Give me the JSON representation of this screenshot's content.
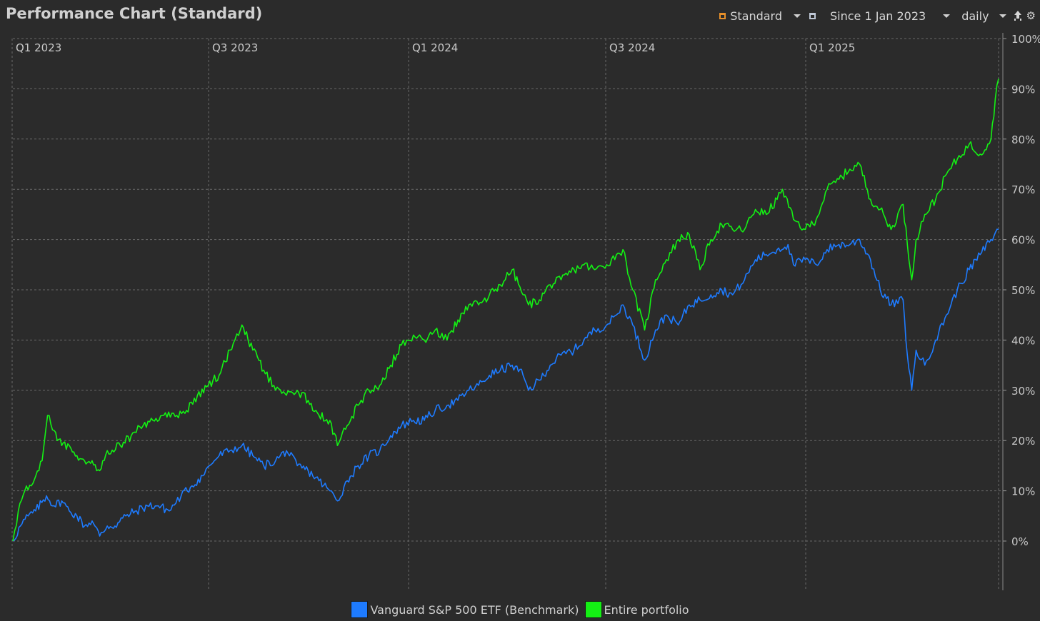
{
  "window": {
    "title": "Performance Chart (Standard)"
  },
  "toolbar": {
    "view_label": "Standard",
    "view_icon": "chart-config-icon",
    "period_label": "Since 1 Jan 2023",
    "period_icon": "calendar-icon",
    "interval_label": "daily",
    "export_icon": "export-icon",
    "settings_icon": "gear-icon"
  },
  "colors": {
    "background": "#2b2b2b",
    "grid": "#6a6a6a",
    "axis_text": "#c8c8c8",
    "benchmark": "#1e7bff",
    "portfolio": "#14f014",
    "accent_orange": "#e8902a"
  },
  "chart_data": {
    "type": "line",
    "title": "Performance Chart (Standard)",
    "xlabel": "",
    "ylabel": "",
    "x_range": [
      "2023-01-01",
      "2025-06-27"
    ],
    "ylim": [
      0,
      100
    ],
    "y_ticks": [
      0,
      10,
      20,
      30,
      40,
      50,
      60,
      70,
      80,
      90,
      100
    ],
    "y_tick_labels": [
      "0%",
      "10%",
      "20%",
      "30%",
      "40%",
      "50%",
      "60%",
      "70%",
      "80%",
      "90%",
      "100%"
    ],
    "x_ticks": [
      {
        "label": "Q1 2023",
        "date": "2023-01-01"
      },
      {
        "label": "Q3 2023",
        "date": "2023-07-01"
      },
      {
        "label": "Q1 2024",
        "date": "2024-01-01"
      },
      {
        "label": "Q3 2024",
        "date": "2024-07-01"
      },
      {
        "label": "Q1 2025",
        "date": "2025-01-01"
      }
    ],
    "grid": true,
    "legend_position": "bottom-center",
    "series": [
      {
        "name": "Vanguard S&P 500 ETF (Benchmark)",
        "color": "#1e7bff",
        "points": [
          [
            "2023-01-01",
            0
          ],
          [
            "2023-01-08",
            3
          ],
          [
            "2023-01-15",
            5
          ],
          [
            "2023-01-22",
            6
          ],
          [
            "2023-02-01",
            9
          ],
          [
            "2023-02-08",
            7
          ],
          [
            "2023-02-15",
            8
          ],
          [
            "2023-02-22",
            6
          ],
          [
            "2023-03-01",
            5
          ],
          [
            "2023-03-08",
            3
          ],
          [
            "2023-03-15",
            4
          ],
          [
            "2023-03-22",
            1
          ],
          [
            "2023-03-29",
            3
          ],
          [
            "2023-04-05",
            3
          ],
          [
            "2023-04-15",
            5
          ],
          [
            "2023-04-25",
            6
          ],
          [
            "2023-05-05",
            7
          ],
          [
            "2023-05-15",
            7
          ],
          [
            "2023-05-25",
            6
          ],
          [
            "2023-06-05",
            9
          ],
          [
            "2023-06-15",
            11
          ],
          [
            "2023-06-25",
            13
          ],
          [
            "2023-07-01",
            15
          ],
          [
            "2023-07-10",
            17
          ],
          [
            "2023-07-20",
            18
          ],
          [
            "2023-07-31",
            19
          ],
          [
            "2023-08-10",
            17
          ],
          [
            "2023-08-20",
            15
          ],
          [
            "2023-08-31",
            16
          ],
          [
            "2023-09-10",
            18
          ],
          [
            "2023-09-20",
            15
          ],
          [
            "2023-09-30",
            14
          ],
          [
            "2023-10-10",
            12
          ],
          [
            "2023-10-20",
            10
          ],
          [
            "2023-10-27",
            8
          ],
          [
            "2023-11-05",
            12
          ],
          [
            "2023-11-15",
            15
          ],
          [
            "2023-11-25",
            17
          ],
          [
            "2023-12-05",
            18
          ],
          [
            "2023-12-15",
            21
          ],
          [
            "2023-12-25",
            23
          ],
          [
            "2024-01-05",
            24
          ],
          [
            "2024-01-15",
            24
          ],
          [
            "2024-01-25",
            26
          ],
          [
            "2024-02-05",
            27
          ],
          [
            "2024-02-15",
            28
          ],
          [
            "2024-02-25",
            30
          ],
          [
            "2024-03-05",
            31
          ],
          [
            "2024-03-15",
            33
          ],
          [
            "2024-03-25",
            34
          ],
          [
            "2024-04-05",
            35
          ],
          [
            "2024-04-15",
            33
          ],
          [
            "2024-04-20",
            30
          ],
          [
            "2024-04-30",
            32
          ],
          [
            "2024-05-10",
            35
          ],
          [
            "2024-05-20",
            37
          ],
          [
            "2024-06-01",
            38
          ],
          [
            "2024-06-10",
            40
          ],
          [
            "2024-06-20",
            42
          ],
          [
            "2024-07-01",
            43
          ],
          [
            "2024-07-10",
            45
          ],
          [
            "2024-07-16",
            47
          ],
          [
            "2024-07-25",
            43
          ],
          [
            "2024-08-05",
            36
          ],
          [
            "2024-08-15",
            42
          ],
          [
            "2024-08-25",
            45
          ],
          [
            "2024-09-05",
            43
          ],
          [
            "2024-09-15",
            47
          ],
          [
            "2024-09-25",
            48
          ],
          [
            "2024-10-05",
            49
          ],
          [
            "2024-10-15",
            50
          ],
          [
            "2024-10-25",
            49
          ],
          [
            "2024-11-05",
            52
          ],
          [
            "2024-11-15",
            56
          ],
          [
            "2024-11-25",
            57
          ],
          [
            "2024-12-05",
            58
          ],
          [
            "2024-12-15",
            59
          ],
          [
            "2024-12-20",
            55
          ],
          [
            "2024-12-31",
            56
          ],
          [
            "2025-01-10",
            55
          ],
          [
            "2025-01-20",
            58
          ],
          [
            "2025-01-31",
            59
          ],
          [
            "2025-02-10",
            59
          ],
          [
            "2025-02-19",
            60
          ],
          [
            "2025-03-01",
            56
          ],
          [
            "2025-03-10",
            50
          ],
          [
            "2025-03-20",
            47
          ],
          [
            "2025-03-31",
            48
          ],
          [
            "2025-04-04",
            37
          ],
          [
            "2025-04-08",
            30
          ],
          [
            "2025-04-12",
            38
          ],
          [
            "2025-04-20",
            35
          ],
          [
            "2025-04-30",
            40
          ],
          [
            "2025-05-10",
            45
          ],
          [
            "2025-05-20",
            50
          ],
          [
            "2025-05-31",
            54
          ],
          [
            "2025-06-10",
            57
          ],
          [
            "2025-06-20",
            60
          ],
          [
            "2025-06-27",
            62
          ]
        ]
      },
      {
        "name": "Entire portfolio",
        "color": "#14f014",
        "points": [
          [
            "2023-01-01",
            0
          ],
          [
            "2023-01-06",
            6
          ],
          [
            "2023-01-12",
            10
          ],
          [
            "2023-01-18",
            11
          ],
          [
            "2023-01-25",
            14
          ],
          [
            "2023-01-28",
            16
          ],
          [
            "2023-02-02",
            25
          ],
          [
            "2023-02-08",
            22
          ],
          [
            "2023-02-15",
            19
          ],
          [
            "2023-02-22",
            19
          ],
          [
            "2023-03-01",
            17
          ],
          [
            "2023-03-08",
            16
          ],
          [
            "2023-03-15",
            16
          ],
          [
            "2023-03-22",
            14
          ],
          [
            "2023-03-29",
            18
          ],
          [
            "2023-04-10",
            19
          ],
          [
            "2023-04-20",
            21
          ],
          [
            "2023-05-01",
            23
          ],
          [
            "2023-05-10",
            24
          ],
          [
            "2023-05-20",
            25
          ],
          [
            "2023-06-01",
            25
          ],
          [
            "2023-06-10",
            26
          ],
          [
            "2023-06-20",
            29
          ],
          [
            "2023-06-30",
            31
          ],
          [
            "2023-07-10",
            33
          ],
          [
            "2023-07-20",
            38
          ],
          [
            "2023-07-31",
            43
          ],
          [
            "2023-08-10",
            38
          ],
          [
            "2023-08-20",
            34
          ],
          [
            "2023-08-31",
            30
          ],
          [
            "2023-09-10",
            29
          ],
          [
            "2023-09-20",
            30
          ],
          [
            "2023-09-30",
            28
          ],
          [
            "2023-10-10",
            25
          ],
          [
            "2023-10-20",
            24
          ],
          [
            "2023-10-27",
            19
          ],
          [
            "2023-11-05",
            23
          ],
          [
            "2023-11-15",
            27
          ],
          [
            "2023-11-25",
            30
          ],
          [
            "2023-12-05",
            31
          ],
          [
            "2023-12-15",
            35
          ],
          [
            "2023-12-25",
            39
          ],
          [
            "2024-01-05",
            41
          ],
          [
            "2024-01-15",
            40
          ],
          [
            "2024-01-25",
            42
          ],
          [
            "2024-02-05",
            40
          ],
          [
            "2024-02-15",
            44
          ],
          [
            "2024-02-25",
            47
          ],
          [
            "2024-03-05",
            47
          ],
          [
            "2024-03-15",
            49
          ],
          [
            "2024-03-25",
            51
          ],
          [
            "2024-04-05",
            54
          ],
          [
            "2024-04-15",
            49
          ],
          [
            "2024-04-20",
            47
          ],
          [
            "2024-04-30",
            48
          ],
          [
            "2024-05-10",
            51
          ],
          [
            "2024-05-20",
            52
          ],
          [
            "2024-06-01",
            54
          ],
          [
            "2024-06-10",
            55
          ],
          [
            "2024-06-20",
            54
          ],
          [
            "2024-07-01",
            55
          ],
          [
            "2024-07-10",
            57
          ],
          [
            "2024-07-16",
            58
          ],
          [
            "2024-07-25",
            50
          ],
          [
            "2024-08-05",
            42
          ],
          [
            "2024-08-15",
            52
          ],
          [
            "2024-08-25",
            56
          ],
          [
            "2024-09-05",
            60
          ],
          [
            "2024-09-15",
            61
          ],
          [
            "2024-09-25",
            54
          ],
          [
            "2024-10-05",
            60
          ],
          [
            "2024-10-15",
            63
          ],
          [
            "2024-10-25",
            62
          ],
          [
            "2024-11-05",
            62
          ],
          [
            "2024-11-15",
            66
          ],
          [
            "2024-11-25",
            65
          ],
          [
            "2024-12-05",
            68
          ],
          [
            "2024-12-10",
            70
          ],
          [
            "2024-12-20",
            64
          ],
          [
            "2024-12-31",
            62
          ],
          [
            "2025-01-10",
            64
          ],
          [
            "2025-01-20",
            70
          ],
          [
            "2025-01-31",
            72
          ],
          [
            "2025-02-10",
            74
          ],
          [
            "2025-02-19",
            75
          ],
          [
            "2025-03-01",
            68
          ],
          [
            "2025-03-10",
            66
          ],
          [
            "2025-03-20",
            62
          ],
          [
            "2025-03-31",
            67
          ],
          [
            "2025-04-04",
            59
          ],
          [
            "2025-04-08",
            52
          ],
          [
            "2025-04-12",
            60
          ],
          [
            "2025-04-20",
            65
          ],
          [
            "2025-04-30",
            68
          ],
          [
            "2025-05-10",
            73
          ],
          [
            "2025-05-20",
            76
          ],
          [
            "2025-05-31",
            79
          ],
          [
            "2025-06-10",
            77
          ],
          [
            "2025-06-20",
            80
          ],
          [
            "2025-06-24",
            88
          ],
          [
            "2025-06-27",
            92
          ]
        ]
      }
    ]
  }
}
